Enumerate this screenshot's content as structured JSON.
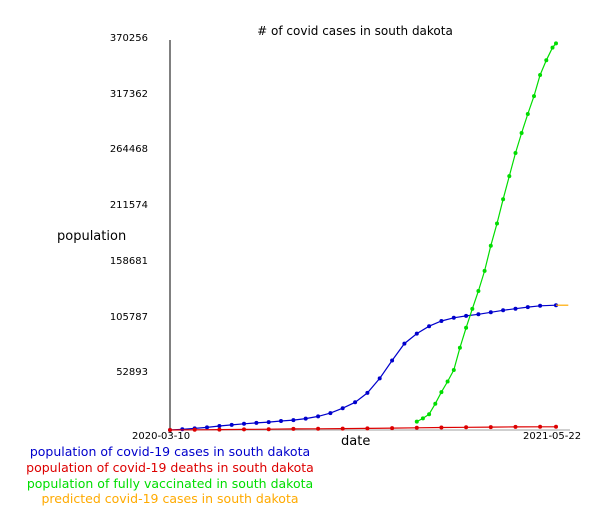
{
  "chart_data": {
    "type": "line",
    "title": "# of covid cases in south dakota",
    "xlabel": "date",
    "ylabel": "population",
    "x_range": [
      "2020-03-10",
      "2021-05-22"
    ],
    "x_tick_labels": [
      "2020-03-10",
      "2021-05-22"
    ],
    "ylim": [
      0,
      370256
    ],
    "y_tick_labels": [
      "52893",
      "105787",
      "158681",
      "211574",
      "264468",
      "317362",
      "370256"
    ],
    "y_ticks": [
      52893,
      105787,
      158681,
      211574,
      264468,
      317362,
      370256
    ],
    "grid": false,
    "legend_position": "bottom-left",
    "series": [
      {
        "name": "population of covid-19 cases in south dakota",
        "color": "#0000cc",
        "marker": "dot",
        "x": [
          "2020-03-10",
          "2020-03-24",
          "2020-04-07",
          "2020-04-21",
          "2020-05-05",
          "2020-05-19",
          "2020-06-02",
          "2020-06-16",
          "2020-06-30",
          "2020-07-14",
          "2020-07-28",
          "2020-08-11",
          "2020-08-25",
          "2020-09-08",
          "2020-09-22",
          "2020-10-06",
          "2020-10-20",
          "2020-11-03",
          "2020-11-17",
          "2020-12-01",
          "2020-12-15",
          "2020-12-29",
          "2021-01-12",
          "2021-01-26",
          "2021-02-09",
          "2021-02-23",
          "2021-03-09",
          "2021-03-23",
          "2021-04-06",
          "2021-04-20",
          "2021-05-04",
          "2021-05-22"
        ],
        "values": [
          0,
          700,
          1500,
          2500,
          3800,
          4800,
          5900,
          6700,
          7500,
          8500,
          9400,
          10800,
          12900,
          16000,
          20700,
          26300,
          35200,
          49000,
          66000,
          82000,
          91500,
          98500,
          103500,
          106500,
          108300,
          109800,
          111700,
          113600,
          115200,
          116700,
          117900,
          118500
        ]
      },
      {
        "name": "population of covid-19 deaths in south dakota",
        "color": "#dd0000",
        "marker": "dot",
        "x": [
          "2020-03-10",
          "2020-04-07",
          "2020-05-05",
          "2020-06-02",
          "2020-06-30",
          "2020-07-28",
          "2020-08-25",
          "2020-09-22",
          "2020-10-20",
          "2020-11-17",
          "2020-12-15",
          "2021-01-12",
          "2021-02-09",
          "2021-03-09",
          "2021-04-06",
          "2021-05-04",
          "2021-05-22"
        ],
        "values": [
          0,
          200,
          400,
          600,
          800,
          1000,
          1100,
          1300,
          1500,
          1800,
          2100,
          2400,
          2600,
          2800,
          2900,
          3000,
          3000
        ]
      },
      {
        "name": "population of fully vaccinated in south dakota",
        "color": "#00dd00",
        "marker": "dot",
        "x": [
          "2020-12-15",
          "2020-12-22",
          "2020-12-29",
          "2021-01-05",
          "2021-01-12",
          "2021-01-19",
          "2021-01-26",
          "2021-02-02",
          "2021-02-09",
          "2021-02-16",
          "2021-02-23",
          "2021-03-02",
          "2021-03-09",
          "2021-03-16",
          "2021-03-23",
          "2021-03-30",
          "2021-04-06",
          "2021-04-13",
          "2021-04-20",
          "2021-04-27",
          "2021-05-04",
          "2021-05-11",
          "2021-05-18",
          "2021-05-22"
        ],
        "values": [
          8000,
          11000,
          15000,
          25000,
          36000,
          46000,
          57000,
          78000,
          97000,
          115000,
          132000,
          151000,
          175000,
          196000,
          219000,
          241000,
          263000,
          282000,
          300000,
          317000,
          337000,
          351000,
          363000,
          367000
        ]
      },
      {
        "name": "predicted covid-19 cases in south dakota",
        "color": "#ffaa00",
        "marker": "none",
        "x": [
          "2021-05-22",
          "2021-06-05"
        ],
        "values": [
          118500,
          118500
        ]
      }
    ]
  }
}
